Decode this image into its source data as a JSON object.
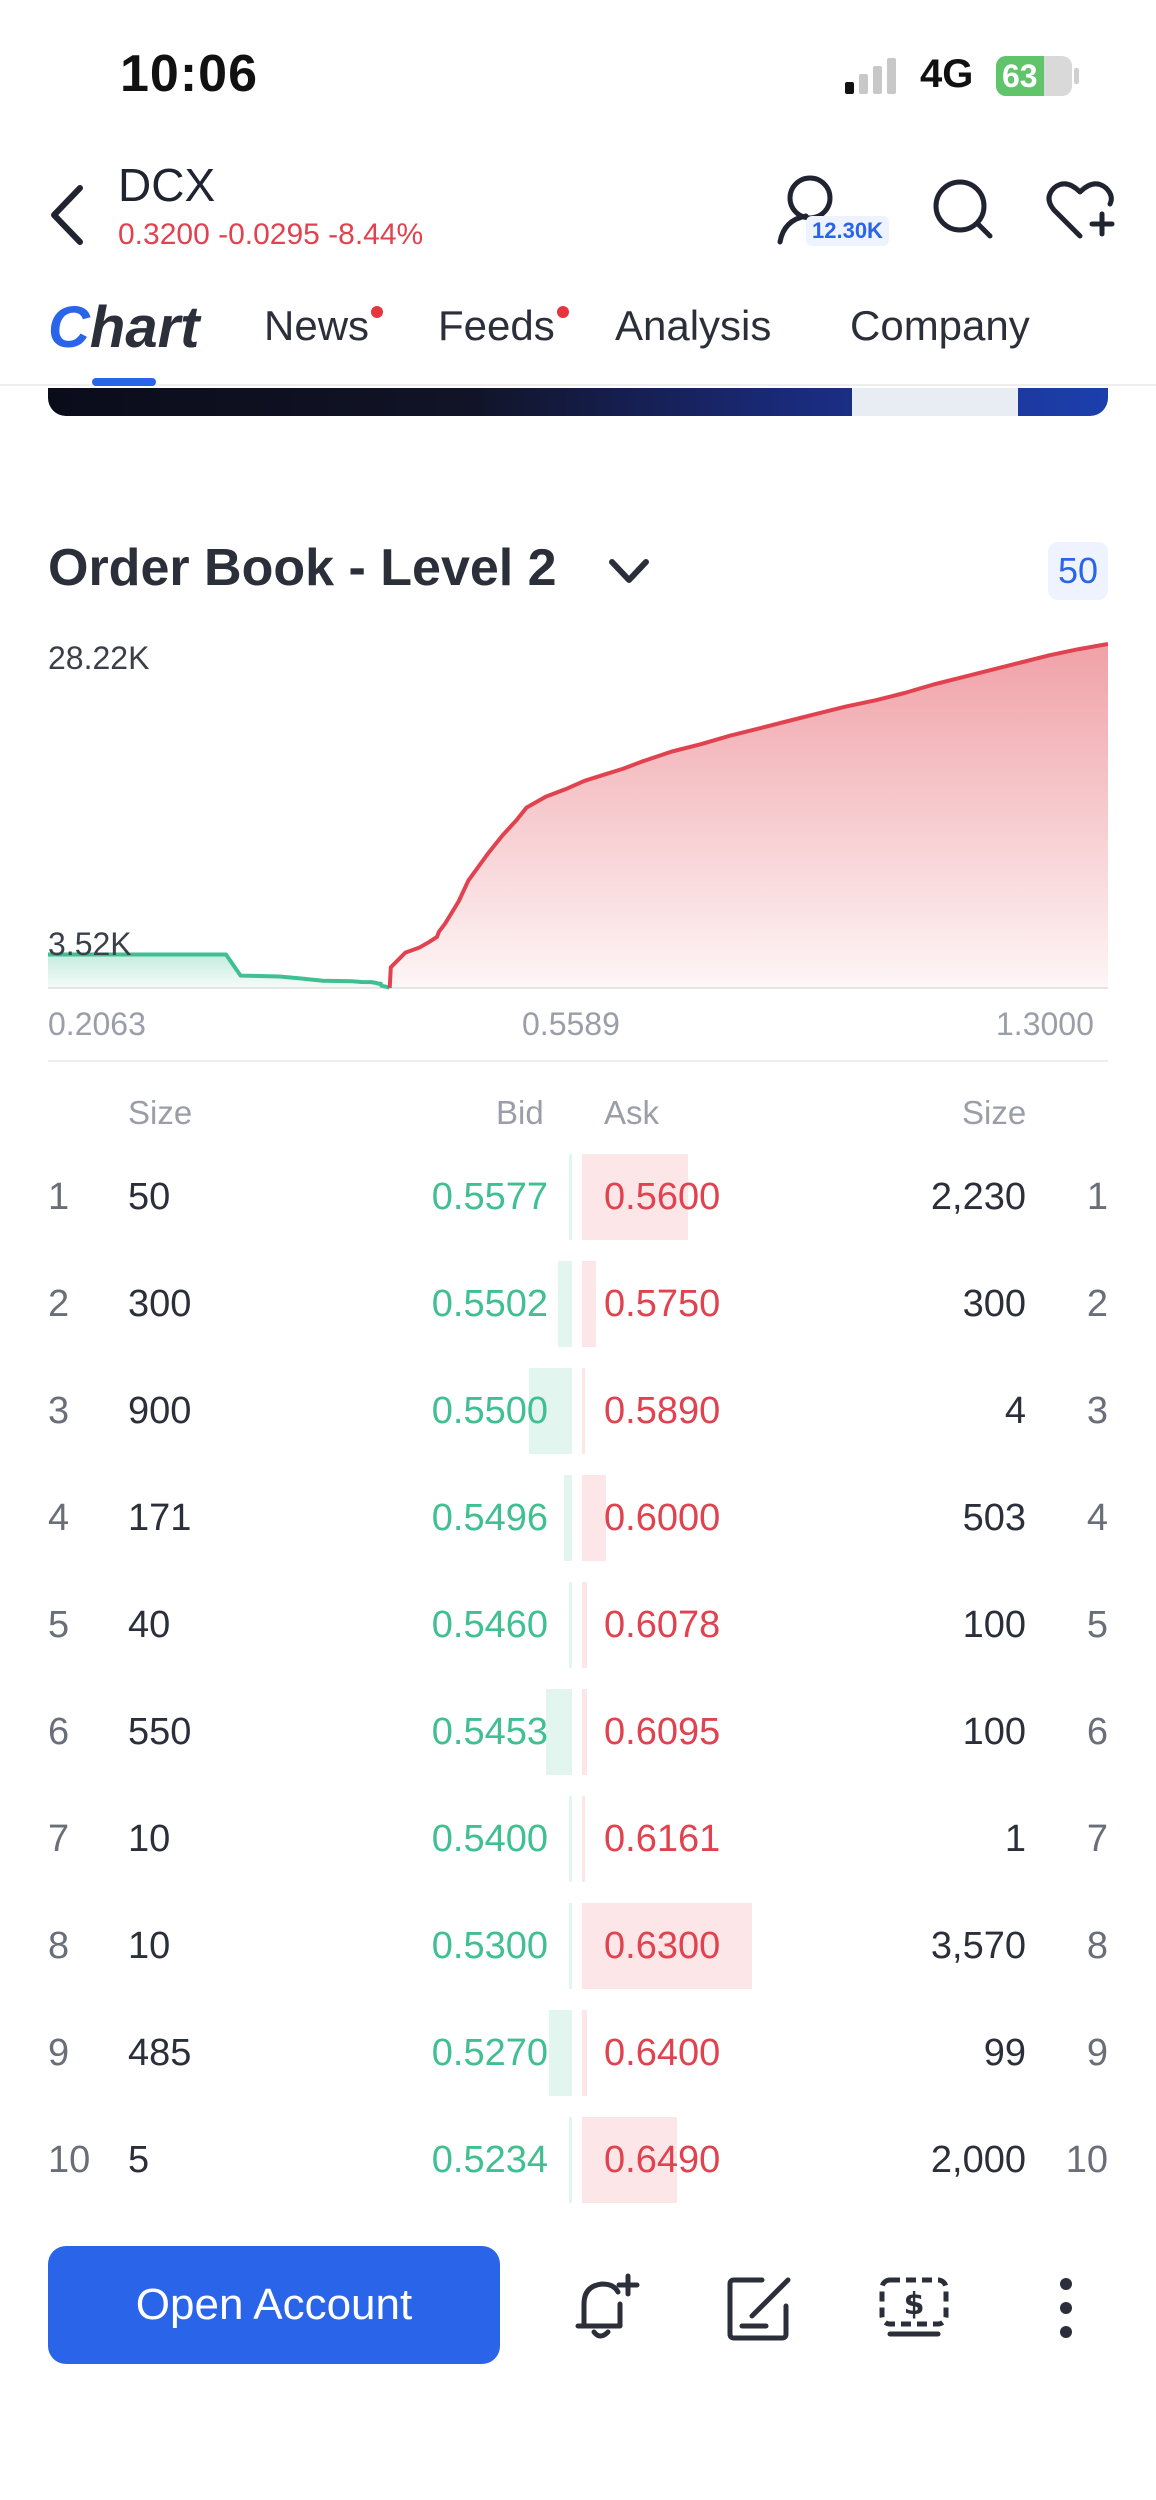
{
  "status_bar": {
    "time": "10:06",
    "network": "4G",
    "battery": "63",
    "battery_level_percent": 63
  },
  "header": {
    "ticker": "DCX",
    "quote": "0.3200 -0.0295 -8.44%",
    "follow_count": "12.30K",
    "icons": [
      "back-chevron-icon",
      "follow-user-icon",
      "search-icon",
      "heart-add-icon"
    ]
  },
  "tabs": [
    {
      "label": "Chart",
      "active": true,
      "dot": false
    },
    {
      "label": "News",
      "active": false,
      "dot": true
    },
    {
      "label": "Feeds",
      "active": false,
      "dot": true
    },
    {
      "label": "Analysis",
      "active": false,
      "dot": false
    },
    {
      "label": "Company",
      "active": false,
      "dot": false
    }
  ],
  "order_book": {
    "title": "Order Book - Level 2",
    "depth": "50",
    "columns": {
      "size_left": "Size",
      "bid": "Bid",
      "ask": "Ask",
      "size_right": "Size"
    },
    "rows": [
      {
        "n": "1",
        "bid_size": "50",
        "bid": "0.5577",
        "ask": "0.5600",
        "ask_size": "2,230",
        "bid_vol": 50,
        "ask_vol": 2230
      },
      {
        "n": "2",
        "bid_size": "300",
        "bid": "0.5502",
        "ask": "0.5750",
        "ask_size": "300",
        "bid_vol": 300,
        "ask_vol": 300
      },
      {
        "n": "3",
        "bid_size": "900",
        "bid": "0.5500",
        "ask": "0.5890",
        "ask_size": "4",
        "bid_vol": 900,
        "ask_vol": 4
      },
      {
        "n": "4",
        "bid_size": "171",
        "bid": "0.5496",
        "ask": "0.6000",
        "ask_size": "503",
        "bid_vol": 171,
        "ask_vol": 503
      },
      {
        "n": "5",
        "bid_size": "40",
        "bid": "0.5460",
        "ask": "0.6078",
        "ask_size": "100",
        "bid_vol": 40,
        "ask_vol": 100
      },
      {
        "n": "6",
        "bid_size": "550",
        "bid": "0.5453",
        "ask": "0.6095",
        "ask_size": "100",
        "bid_vol": 550,
        "ask_vol": 100
      },
      {
        "n": "7",
        "bid_size": "10",
        "bid": "0.5400",
        "ask": "0.6161",
        "ask_size": "1",
        "bid_vol": 10,
        "ask_vol": 1
      },
      {
        "n": "8",
        "bid_size": "10",
        "bid": "0.5300",
        "ask": "0.6300",
        "ask_size": "3,570",
        "bid_vol": 10,
        "ask_vol": 3570
      },
      {
        "n": "9",
        "bid_size": "485",
        "bid": "0.5270",
        "ask": "0.6400",
        "ask_size": "99",
        "bid_vol": 485,
        "ask_vol": 99
      },
      {
        "n": "10",
        "bid_size": "5",
        "bid": "0.5234",
        "ask": "0.6490",
        "ask_size": "2,000",
        "bid_vol": 5,
        "ask_vol": 2000
      }
    ]
  },
  "chart_data": {
    "type": "area",
    "y_labels": [
      "28.22K",
      "3.52K"
    ],
    "x_labels": [
      "0.2063",
      "0.5589",
      "1.3000"
    ],
    "xlim": [
      0.2063,
      1.3
    ],
    "ylim": [
      0,
      28220
    ],
    "series": [
      {
        "color": "#3fbf92",
        "x": [
          0.2063,
          0.39,
          0.405,
          0.445,
          0.465,
          0.475,
          0.49,
          0.52,
          0.53,
          0.54,
          0.5453,
          0.546,
          0.5496,
          0.55,
          0.5502,
          0.5577,
          0.5589
        ],
        "y": [
          2750,
          2750,
          1020,
          940,
          800,
          720,
          600,
          560,
          490,
          480,
          410,
          370,
          360,
          290,
          190,
          60,
          0
        ]
      },
      {
        "color": "#e0434f",
        "x": [
          0.5589,
          0.56,
          0.575,
          0.589,
          0.6,
          0.6078,
          0.6095,
          0.6161,
          0.63,
          0.64,
          0.649,
          0.66,
          0.675,
          0.69,
          0.7,
          0.72,
          0.74,
          0.76,
          0.78,
          0.8,
          0.82,
          0.85,
          0.88,
          0.91,
          0.94,
          0.97,
          1.0,
          1.03,
          1.06,
          1.09,
          1.12,
          1.15,
          1.18,
          1.21,
          1.24,
          1.27,
          1.3
        ],
        "y": [
          0,
          1700,
          2900,
          3300,
          3800,
          4200,
          4600,
          5300,
          7100,
          8800,
          9800,
          11000,
          12500,
          13800,
          14800,
          15700,
          16300,
          17000,
          17500,
          18000,
          18600,
          19400,
          20000,
          20700,
          21300,
          21900,
          22500,
          23100,
          23600,
          24200,
          24900,
          25500,
          26100,
          26700,
          27300,
          27800,
          28220
        ]
      }
    ]
  },
  "bottom_bar": {
    "open_account_label": "Open Account",
    "icons": [
      "add-alert-icon",
      "edit-note-icon",
      "trade-dollar-icon",
      "more-vertical-icon"
    ]
  }
}
